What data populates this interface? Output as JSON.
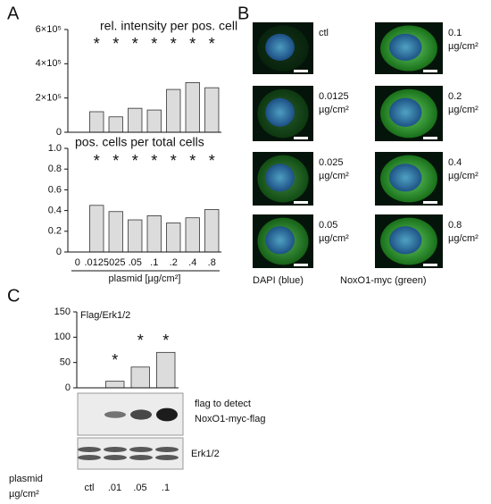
{
  "panel_labels": [
    "A",
    "B",
    "C"
  ],
  "chart_data": [
    {
      "type": "bar",
      "title": "rel. intensity per pos. cell",
      "values": [
        0,
        120000,
        90000,
        140000,
        130000,
        250000,
        290000,
        260000
      ],
      "ylim": [
        0,
        600000
      ],
      "yticks": [
        0,
        {
          "value": 200000,
          "label": "2×10⁵"
        },
        {
          "value": 400000,
          "label": "4×10⁵"
        },
        {
          "value": 600000,
          "label": "6×10⁵"
        }
      ],
      "marker": "*",
      "significant": [
        false,
        true,
        true,
        true,
        true,
        true,
        true,
        true
      ],
      "color": "#dcdcdc"
    },
    {
      "type": "bar",
      "title": "pos. cells per total cells",
      "x_label": "plasmid [µg/cm²]",
      "categories": [
        "0",
        ".0125",
        ".025",
        ".05",
        ".1",
        ".2",
        ".4",
        ".8"
      ],
      "values": [
        0,
        0.45,
        0.39,
        0.31,
        0.35,
        0.28,
        0.33,
        0.41
      ],
      "ylim": [
        0,
        1
      ],
      "yticks": [
        0,
        0.2,
        0.4,
        0.6,
        0.8,
        {
          "value": 1,
          "label": "1.0"
        }
      ],
      "marker": "*",
      "significant": [
        false,
        true,
        true,
        true,
        true,
        true,
        true,
        true
      ],
      "color": "#dcdcdc"
    },
    {
      "type": "bar",
      "title": "Flag/Erk1/2",
      "categories": [
        "ctl",
        ".01",
        ".05",
        ".1"
      ],
      "values": [
        0,
        13,
        41,
        70
      ],
      "ylim": [
        0,
        150
      ],
      "yticks": [
        0,
        50,
        100,
        150
      ],
      "marker": "*",
      "significant": [
        false,
        true,
        true,
        true
      ],
      "color": "#dcdcdc"
    }
  ],
  "image_labels": [
    [
      "ctl"
    ],
    [
      "0.0125",
      "µg/cm²"
    ],
    [
      "0.025",
      "µg/cm²"
    ],
    [
      "0.05",
      "µg/cm²"
    ],
    [
      "0.1",
      "µg/cm²"
    ],
    [
      "0.2",
      "µg/cm²"
    ],
    [
      "0.4",
      "µg/cm²"
    ],
    [
      "0.8",
      "µg/cm²"
    ]
  ],
  "image_captions": [
    "DAPI (blue)",
    "NoxO1-myc (green)"
  ],
  "blot_labels": [
    [
      "flag to detect",
      "NoxO1-myc-flag"
    ],
    [
      "Erk1/2"
    ]
  ],
  "blot_x_label": [
    "plasmid",
    "µg/cm²"
  ]
}
